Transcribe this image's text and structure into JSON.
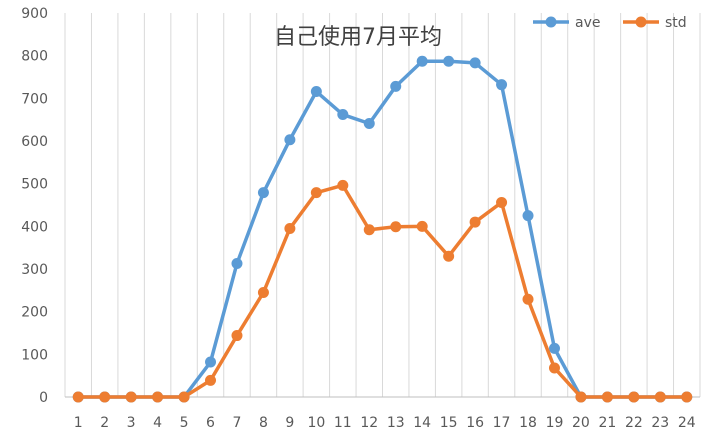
{
  "chart_data": {
    "type": "line",
    "title": "自己使用7月平均",
    "xlabel": "",
    "ylabel": "",
    "categories": [
      "1",
      "2",
      "3",
      "4",
      "5",
      "6",
      "7",
      "8",
      "9",
      "10",
      "11",
      "12",
      "13",
      "14",
      "15",
      "16",
      "17",
      "18",
      "19",
      "20",
      "21",
      "22",
      "23",
      "24"
    ],
    "ylim": [
      0,
      900
    ],
    "yticks": [
      "0",
      "100",
      "200",
      "300",
      "400",
      "500",
      "600",
      "700",
      "800",
      "900"
    ],
    "grid": "vertical",
    "legend_position": "top-right",
    "series": [
      {
        "name": "ave",
        "color": "#5b9bd5",
        "values": [
          0,
          0,
          0,
          0,
          0,
          82,
          313,
          479,
          603,
          716,
          662,
          641,
          728,
          787,
          787,
          783,
          732,
          425,
          114,
          0,
          0,
          0,
          0,
          0
        ]
      },
      {
        "name": "std",
        "color": "#ed7d31",
        "values": [
          0,
          0,
          0,
          0,
          0,
          39,
          144,
          245,
          395,
          479,
          496,
          392,
          399,
          400,
          330,
          410,
          456,
          229,
          68,
          0,
          0,
          0,
          0,
          0
        ]
      }
    ]
  }
}
